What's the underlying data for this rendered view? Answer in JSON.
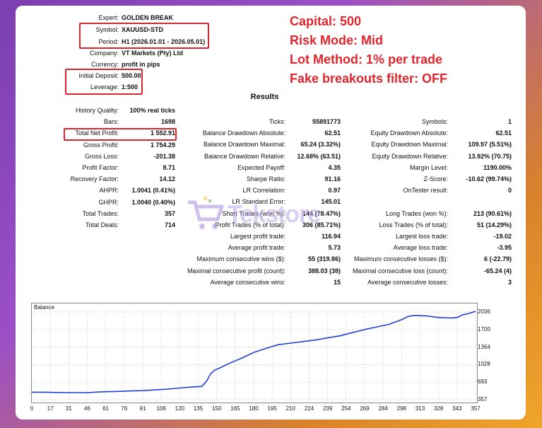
{
  "header": {
    "expert_label": "Expert:",
    "expert_value": "GOLDEN BREAK",
    "symbol_label": "Symbol:",
    "symbol_value": "XAUUSD-STD",
    "period_label": "Period:",
    "period_value": "H1 (2026.01.01 - 2026.05.01)",
    "company_label": "Company:",
    "company_value": "VT Markets (Pty) Ltd",
    "currency_label": "Currency:",
    "currency_value": "profit in pips",
    "deposit_label": "Initial Deposit:",
    "deposit_value": "500.00",
    "leverage_label": "Leverage:",
    "leverage_value": "1:500"
  },
  "banner": {
    "capital": "Capital: 500",
    "risk": "Risk Mode: Mid",
    "lot": "Lot Method: 1% per trade",
    "filter": "Fake breakouts filter: OFF"
  },
  "results_title": "Results",
  "watermark": "Tekstore",
  "col1": [
    {
      "label": "History Quality:",
      "value": "100% real ticks"
    },
    {
      "label": "Bars:",
      "value": "1698"
    },
    {
      "label": "Total Net Profit:",
      "value": "1 552.91"
    },
    {
      "label": "Gross Profit:",
      "value": "1 754.29"
    },
    {
      "label": "Gross Loss:",
      "value": "-201.38"
    },
    {
      "label": "Profit Factor:",
      "value": "8.71"
    },
    {
      "label": "Recovery Factor:",
      "value": "14.12"
    },
    {
      "label": "AHPR:",
      "value": "1.0041 (0.41%)"
    },
    {
      "label": "GHPR:",
      "value": "1.0040 (0.40%)"
    },
    {
      "label": "Total Trades:",
      "value": "357"
    },
    {
      "label": "Total Deals:",
      "value": "714"
    }
  ],
  "col2": [
    {
      "label": "Ticks:",
      "value": "55891773"
    },
    {
      "label": "Balance Drawdown Absolute:",
      "value": "62.51"
    },
    {
      "label": "Balance Drawdown Maximal:",
      "value": "65.24 (3.32%)"
    },
    {
      "label": "Balance Drawdown Relative:",
      "value": "12.68% (63.51)"
    },
    {
      "label": "Expected Payoff:",
      "value": "4.35"
    },
    {
      "label": "Sharpe Ratio:",
      "value": "91.16"
    },
    {
      "label": "LR Correlation:",
      "value": "0.97"
    },
    {
      "label": "LR Standard Error:",
      "value": "145.01"
    },
    {
      "label": "Short Trades (won %):",
      "value": "144 (78.47%)"
    },
    {
      "label": "Profit Trades (% of total):",
      "value": "306 (85.71%)"
    },
    {
      "label": "Largest profit trade:",
      "value": "116.94"
    },
    {
      "label": "Average profit trade:",
      "value": "5.73"
    },
    {
      "label": "Maximum consecutive wins ($):",
      "value": "55 (319.86)"
    },
    {
      "label": "Maximal consecutive profit (count):",
      "value": "388.03 (38)"
    },
    {
      "label": "Average consecutive wins:",
      "value": "15"
    }
  ],
  "col3": [
    {
      "label": "Symbols:",
      "value": "1"
    },
    {
      "label": "Equity Drawdown Absolute:",
      "value": "62.51"
    },
    {
      "label": "Equity Drawdown Maximal:",
      "value": "109.97 (5.51%)"
    },
    {
      "label": "Equity Drawdown Relative:",
      "value": "13.92% (70.75)"
    },
    {
      "label": "Margin Level:",
      "value": "1190.00%"
    },
    {
      "label": "Z-Score:",
      "value": "-10.62 (99.74%)"
    },
    {
      "label": "OnTester result:",
      "value": "0"
    },
    {
      "label": "",
      "value": ""
    },
    {
      "label": "Long Trades (won %):",
      "value": "213 (90.61%)"
    },
    {
      "label": "Loss Trades (% of total):",
      "value": "51 (14.29%)"
    },
    {
      "label": "Largest loss trade:",
      "value": "-19.02"
    },
    {
      "label": "Average loss trade:",
      "value": "-3.95"
    },
    {
      "label": "Maximum consecutive losses ($):",
      "value": "6 (-22.79)"
    },
    {
      "label": "Maximal consecutive loss (count):",
      "value": "-65.24 (4)"
    },
    {
      "label": "Average consecutive losses:",
      "value": "3"
    }
  ],
  "chart_data": {
    "type": "line",
    "title": "Balance",
    "x": [
      0,
      10,
      20,
      30,
      40,
      46,
      50,
      60,
      70,
      80,
      90,
      100,
      110,
      120,
      130,
      138,
      142,
      145,
      148,
      152,
      160,
      170,
      180,
      190,
      200,
      210,
      220,
      230,
      240,
      250,
      260,
      270,
      280,
      290,
      300,
      305,
      310,
      320,
      330,
      340,
      345,
      350,
      355,
      360
    ],
    "series": [
      {
        "values": [
          500,
          500,
          495,
          493,
          493,
          490,
          500,
          510,
          515,
          525,
          530,
          545,
          560,
          580,
          600,
          612,
          720,
          850,
          920,
          960,
          1050,
          1150,
          1260,
          1340,
          1410,
          1440,
          1470,
          1500,
          1540,
          1580,
          1640,
          1700,
          1750,
          1800,
          1890,
          1950,
          1970,
          1960,
          1930,
          1920,
          1930,
          1985,
          2010,
          2050
        ]
      }
    ],
    "y_ticks": [
      "2036",
      "1700",
      "1364",
      "1028",
      "693",
      "357"
    ],
    "x_ticks": [
      "0",
      "17",
      "31",
      "46",
      "61",
      "76",
      "91",
      "106",
      "120",
      "135",
      "150",
      "165",
      "180",
      "195",
      "210",
      "224",
      "239",
      "254",
      "269",
      "284",
      "298",
      "313",
      "328",
      "343",
      "357"
    ],
    "ylim": [
      357,
      2036
    ],
    "xlim": [
      0,
      360
    ],
    "grid": true,
    "color": "#1f3fd6"
  },
  "colors": {
    "accent_red": "#e0262c",
    "box_red": "#d8262d",
    "line_blue": "#1f3fd6"
  }
}
